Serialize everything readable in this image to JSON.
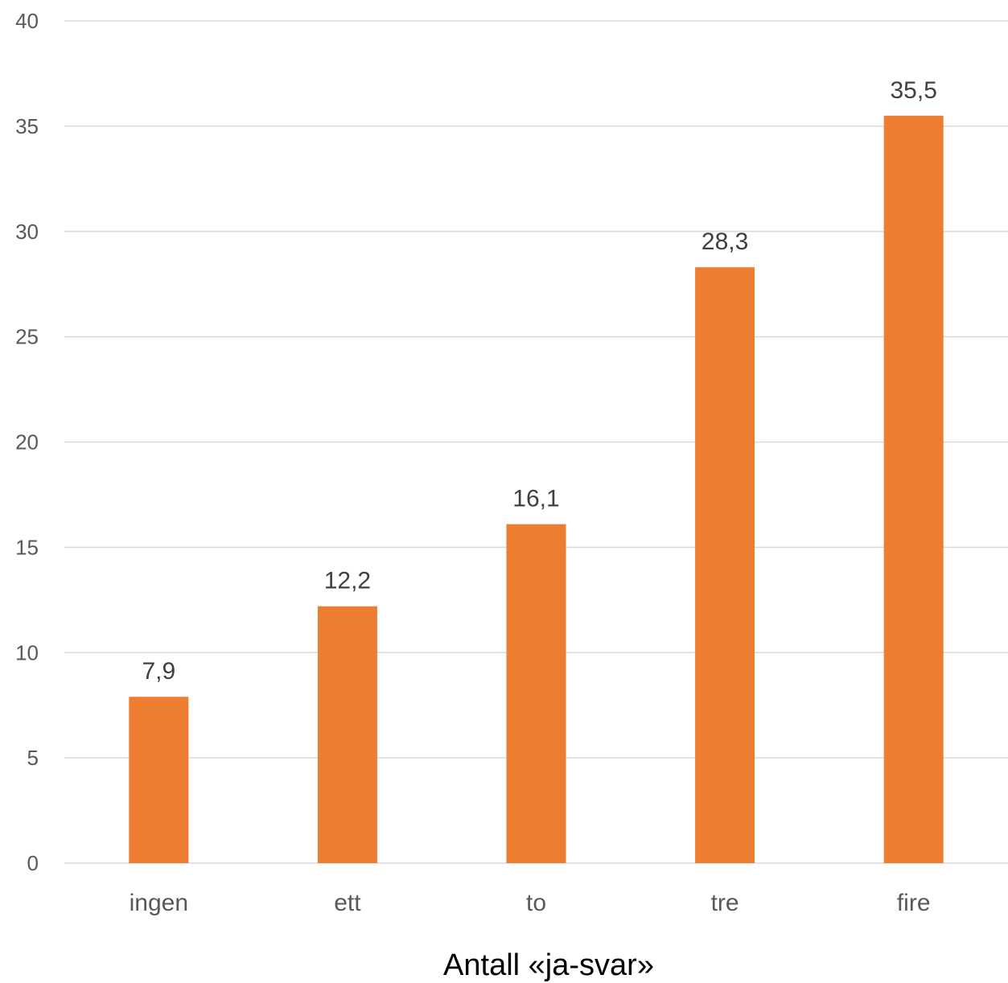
{
  "chart_data": {
    "type": "bar",
    "categories": [
      "ingen",
      "ett",
      "to",
      "tre",
      "fire"
    ],
    "values": [
      7.9,
      12.2,
      16.1,
      28.3,
      35.5
    ],
    "value_labels": [
      "7,9",
      "12,2",
      "16,1",
      "28,3",
      "35,5"
    ],
    "title": "",
    "xlabel": "Antall «ja-svar»",
    "ylabel": "",
    "ylim": [
      0,
      40
    ],
    "yticks": [
      0,
      5,
      10,
      15,
      20,
      25,
      30,
      35,
      40
    ],
    "grid": true,
    "legend": "none",
    "bar_color": "#ed7d31"
  }
}
